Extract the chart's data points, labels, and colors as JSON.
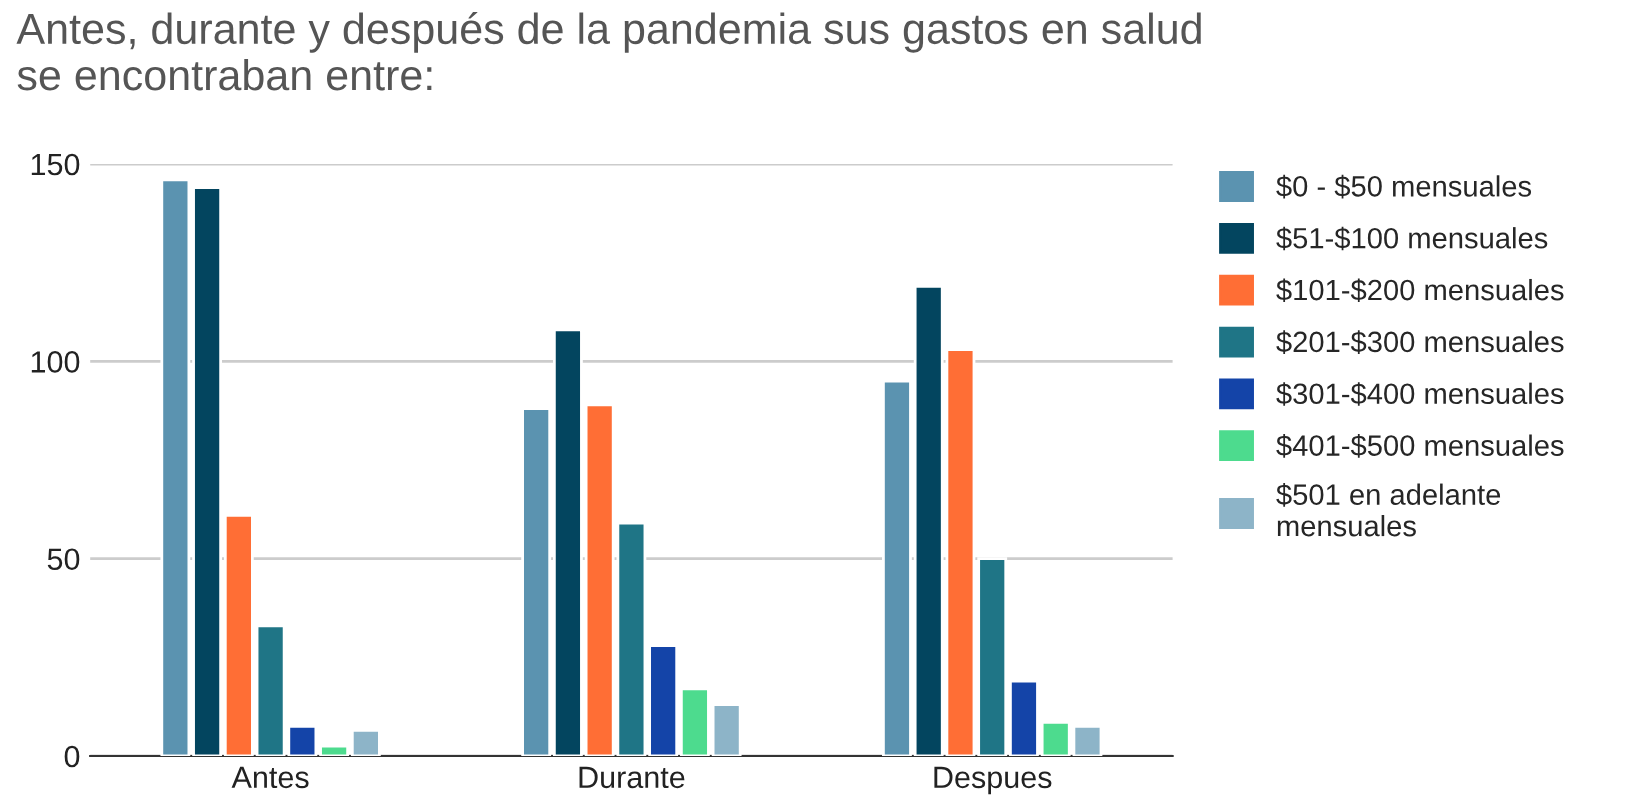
{
  "chart_data": {
    "type": "bar",
    "title": "Antes, durante y después de la pandemia sus gastos en salud\nse encontraban entre:",
    "categories": [
      "Antes",
      "Durante",
      "Despues"
    ],
    "series": [
      {
        "name": "$0 - $50 mensuales",
        "color": "#5b93b0",
        "values": [
          146,
          88,
          95
        ]
      },
      {
        "name": "$51-$100 mensuales",
        "color": "#03455f",
        "values": [
          144,
          108,
          119
        ]
      },
      {
        "name": "$101-$200 mensuales",
        "color": "#ff6e35",
        "values": [
          61,
          89,
          103
        ]
      },
      {
        "name": "$201-$300 mensuales",
        "color": "#1f7586",
        "values": [
          33,
          59,
          50
        ]
      },
      {
        "name": "$301-$400 mensuales",
        "color": "#1444a8",
        "values": [
          7.5,
          28,
          19
        ]
      },
      {
        "name": "$401-$500 mensuales",
        "color": "#4ddb8e",
        "values": [
          2.5,
          17,
          8.5
        ]
      },
      {
        "name": "$501 en adelante\nmensuales",
        "color": "#8db4c8",
        "values": [
          6.5,
          13,
          7.5
        ]
      }
    ],
    "ylim": [
      0,
      150
    ],
    "yticks": [
      0,
      50,
      100,
      150
    ],
    "grid": "y",
    "legend": "right"
  }
}
